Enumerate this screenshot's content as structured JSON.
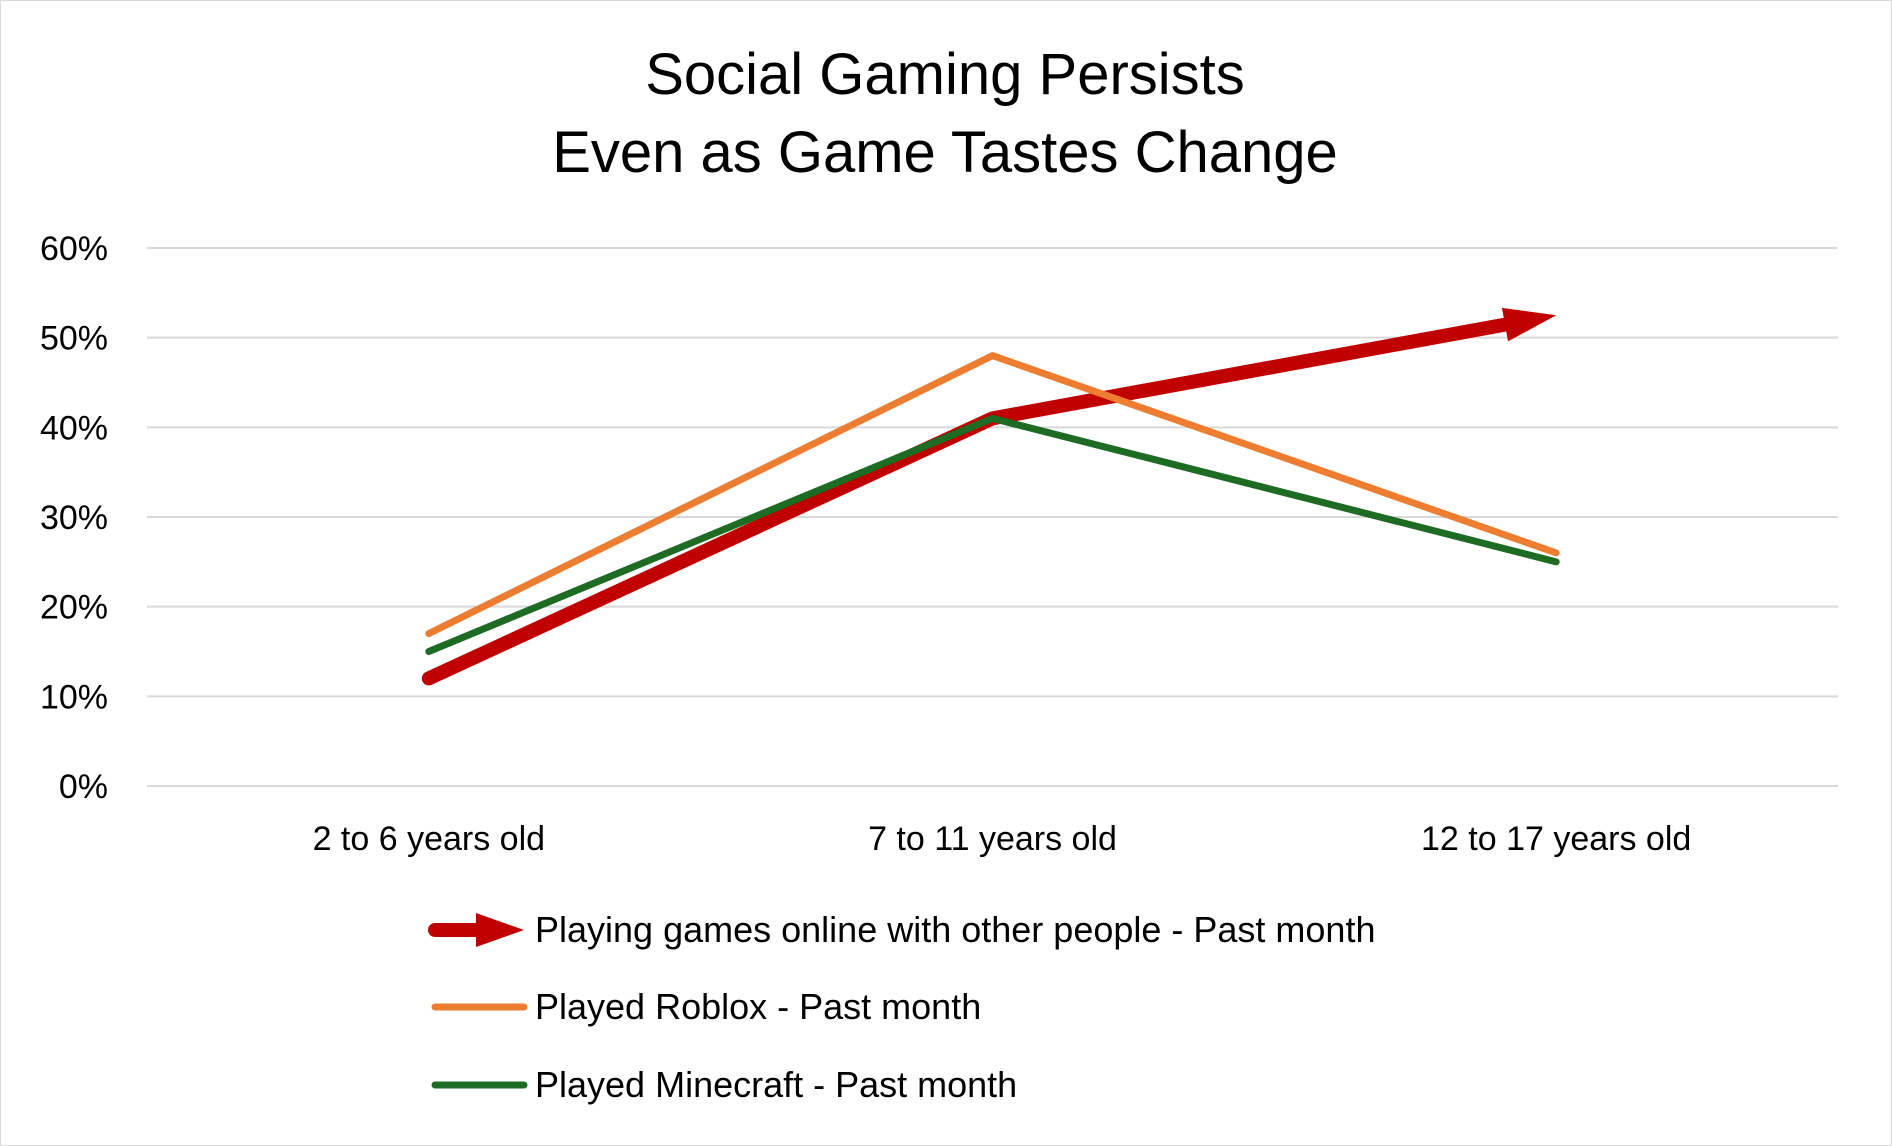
{
  "chart_data": {
    "type": "line",
    "title": [
      "Social Gaming Persists",
      "Even as Game Tastes Change"
    ],
    "xlabel": "",
    "ylabel": "",
    "categories": [
      "2 to 6 years old",
      "7 to 11 years old",
      "12 to 17 years old"
    ],
    "yticks": [
      "0%",
      "10%",
      "20%",
      "30%",
      "40%",
      "50%",
      "60%"
    ],
    "ylim": [
      0,
      60
    ],
    "grid": true,
    "legend": "bottom",
    "series": [
      {
        "name": "Playing games online with other people - Past month",
        "values": [
          12,
          41,
          52.5
        ],
        "color": "#c00000",
        "arrow_end": true
      },
      {
        "name": "Played Roblox - Past month",
        "values": [
          17,
          48,
          26
        ],
        "color": "#ed7d31"
      },
      {
        "name": "Played Minecraft - Past month",
        "values": [
          15,
          41,
          25
        ],
        "color": "#1e6b24"
      }
    ]
  }
}
